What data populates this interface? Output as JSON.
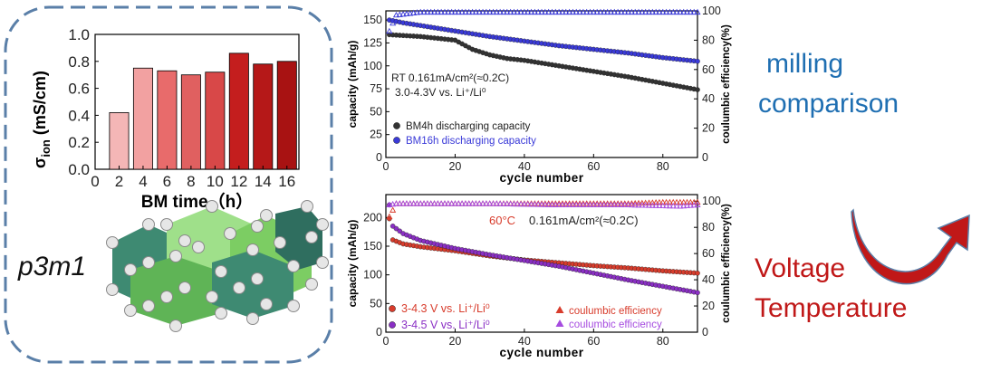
{
  "left_panel": {
    "crystal_label": "p3m1",
    "bar_chart": {
      "type": "bar",
      "x": [
        2,
        4,
        6,
        8,
        10,
        12,
        14,
        16
      ],
      "values": [
        0.42,
        0.75,
        0.73,
        0.7,
        0.72,
        0.86,
        0.78,
        0.8
      ],
      "bar_colors": [
        "#f4b6b6",
        "#f2a1a1",
        "#e86b6b",
        "#e06060",
        "#d84848",
        "#c41e1e",
        "#b51818",
        "#a81212"
      ],
      "xlim": [
        0,
        17
      ],
      "ylim": [
        0.0,
        1.0
      ],
      "xticks": [
        "0",
        "2",
        "4",
        "6",
        "8",
        "10",
        "12",
        "14",
        "16"
      ],
      "yticks": [
        "0.0",
        "0.2",
        "0.4",
        "0.6",
        "0.8",
        "1.0"
      ],
      "xlabel": "BM time（h）",
      "ylabel_main": "σ",
      "ylabel_sub": "ion",
      "ylabel_unit": " (mS/cm)"
    }
  },
  "chart_data": [
    {
      "type": "scatter",
      "xlabel": "cycle number",
      "ylabel_left": "capacity (mAh/g)",
      "ylabel_right": "coulumbic efficiency(%)",
      "xlim": [
        0,
        90
      ],
      "ylim_left": [
        0,
        160
      ],
      "ylim_right": [
        0,
        100
      ],
      "xticks": [
        0,
        20,
        40,
        60,
        80
      ],
      "yticks_left": [
        0,
        25,
        50,
        75,
        100,
        125,
        150
      ],
      "yticks_right": [
        0,
        20,
        40,
        60,
        80,
        100
      ],
      "annotation_line1": "RT 0.161mA/cm²(≈0.2C)",
      "annotation_line2": "3.0-4.3V vs. Li⁺/Li⁰",
      "series": [
        {
          "name": "BM4h discharging capacity",
          "axis": "left",
          "marker": "circle",
          "color": "#333333",
          "x": [
            1,
            10,
            20,
            22,
            25,
            30,
            35,
            40,
            50,
            60,
            70,
            80,
            90
          ],
          "y": [
            134,
            132,
            128,
            124,
            118,
            112,
            108,
            106,
            100,
            94,
            88,
            81,
            74
          ]
        },
        {
          "name": "BM16h discharging capacity",
          "axis": "left",
          "marker": "circle",
          "color": "#3a3ad8",
          "x": [
            1,
            5,
            10,
            20,
            30,
            40,
            50,
            60,
            70,
            80,
            90
          ],
          "y": [
            150,
            147,
            144,
            138,
            132,
            127,
            122,
            118,
            114,
            109,
            105
          ]
        },
        {
          "name": "",
          "axis": "right",
          "marker": "triangle",
          "color": "#3a3ad8",
          "x": [
            1,
            3,
            10,
            30,
            50,
            70,
            90
          ],
          "y": [
            86,
            97,
            99,
            99,
            99,
            99,
            99
          ]
        }
      ]
    },
    {
      "type": "scatter",
      "xlabel": "cycle number",
      "ylabel_left": "capacity (mAh/g)",
      "ylabel_right": "coulumbic efficiency(%)",
      "xlim": [
        0,
        90
      ],
      "ylim_left": [
        0,
        240
      ],
      "ylim_right": [
        0,
        105
      ],
      "xticks": [
        0,
        20,
        40,
        60,
        80
      ],
      "yticks_left": [
        0,
        50,
        100,
        150,
        200
      ],
      "yticks_right": [
        0,
        20,
        40,
        60,
        80,
        100
      ],
      "annotation_temp": "60°C",
      "annotation_rate": "0.161mA/cm²(≈0.2C)",
      "series": [
        {
          "name": "3-4.3 V vs. Li⁺/Li⁰",
          "axis": "left",
          "marker": "circle",
          "color": "#d83c2c",
          "x": [
            1,
            2,
            5,
            10,
            20,
            30,
            40,
            50,
            60,
            70,
            80,
            90
          ],
          "y": [
            198,
            161,
            154,
            149,
            142,
            133,
            126,
            121,
            116,
            112,
            107,
            103
          ]
        },
        {
          "name": "3-4.5 V vs. Li⁺/Li⁰",
          "axis": "left",
          "marker": "circle",
          "color": "#8a2fc4",
          "x": [
            1,
            2,
            5,
            10,
            20,
            30,
            40,
            50,
            60,
            70,
            80,
            90
          ],
          "y": [
            222,
            185,
            172,
            160,
            146,
            135,
            125,
            115,
            103,
            91,
            80,
            69
          ]
        },
        {
          "name": "coulumbic  efficiency",
          "axis": "right",
          "marker": "triangle",
          "color": "#d83c2c",
          "x": [
            1,
            3,
            10,
            30,
            50,
            70,
            80,
            90
          ],
          "y": [
            88,
            98,
            98,
            98,
            98,
            98,
            99,
            99
          ]
        },
        {
          "name": "coulumbic  efficiency",
          "axis": "right",
          "marker": "triangle",
          "color": "#a64ce0",
          "x": [
            1,
            3,
            10,
            30,
            50,
            70,
            85,
            90
          ],
          "y": [
            97,
            98,
            98,
            98,
            97,
            97,
            96,
            97
          ]
        }
      ]
    }
  ],
  "right_labels": {
    "milling_line1": "milling",
    "milling_line2": "comparison",
    "voltage": "Voltage",
    "temperature": "Temperature",
    "milling_color": "#1f6fb2",
    "vt_color": "#c01818",
    "arrow_color": "#c01818"
  }
}
